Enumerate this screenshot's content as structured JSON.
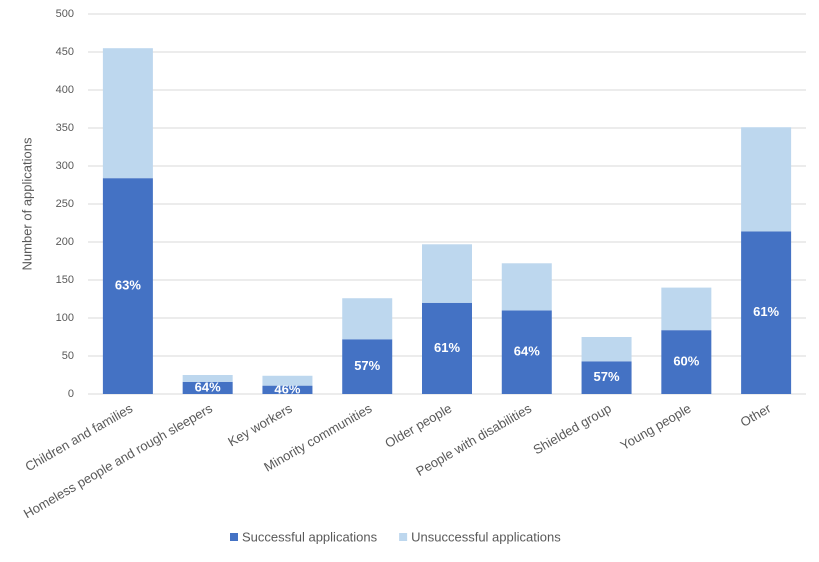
{
  "chart_data": {
    "type": "stacked_bar",
    "y_label": "Number of applications",
    "categories": [
      "Children and families",
      "Homeless people and rough sleepers",
      "Key workers",
      "Minority communities",
      "Older people",
      "People with disabilities",
      "Shielded group",
      "Young people",
      "Other"
    ],
    "series": [
      {
        "name": "Successful applications",
        "color": "#4472c4",
        "values": [
          284,
          16,
          11,
          72,
          120,
          110,
          43,
          84,
          214
        ]
      },
      {
        "name": "Unsuccessful applications",
        "color": "#bdd7ee",
        "values": [
          171,
          9,
          13,
          54,
          77,
          62,
          32,
          56,
          137
        ]
      }
    ],
    "annotations": [
      "63%",
      "64%",
      "46%",
      "57%",
      "61%",
      "64%",
      "57%",
      "60%",
      "61%"
    ],
    "ylim": [
      0,
      500
    ],
    "yticks": [
      0,
      50,
      100,
      150,
      200,
      250,
      300,
      350,
      400,
      450,
      500
    ],
    "grid": true,
    "legend": "bottom"
  }
}
